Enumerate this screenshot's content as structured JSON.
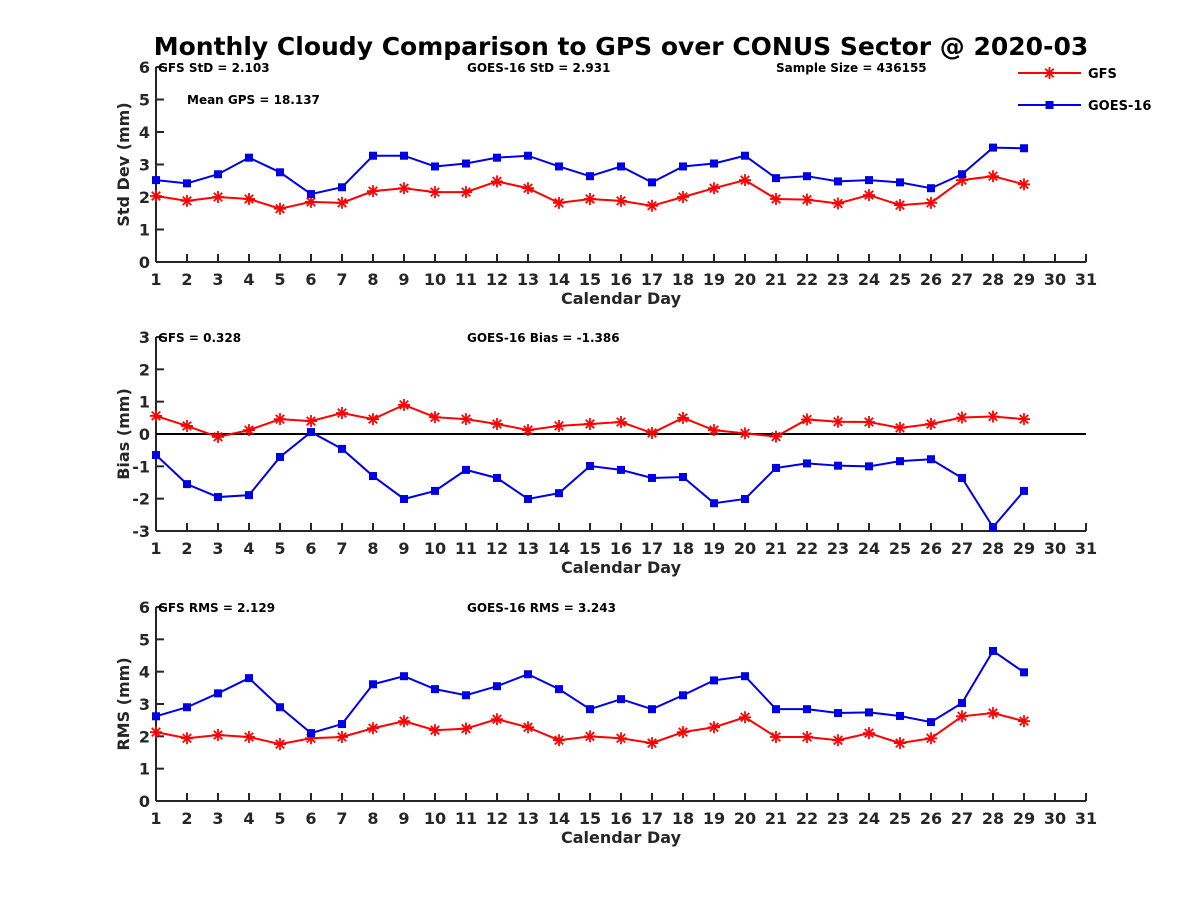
{
  "chart_data": {
    "title": "Monthly Cloudy Comparison to GPS over CONUS Sector @ 2020-03",
    "legend": {
      "placement": "top-right",
      "entries": [
        {
          "name": "GFS",
          "color": "#ff0000",
          "marker": "asterisk"
        },
        {
          "name": "GOES-16",
          "color": "#0000e6",
          "marker": "square"
        }
      ]
    },
    "panels": [
      {
        "type": "line",
        "name": "stddev",
        "xlabel": "Calendar Day",
        "ylabel": "Std Dev (mm)",
        "xlim": [
          1,
          31
        ],
        "ylim": [
          0,
          6
        ],
        "xticks": [
          1,
          2,
          3,
          4,
          5,
          6,
          7,
          8,
          9,
          10,
          11,
          12,
          13,
          14,
          15,
          16,
          17,
          18,
          19,
          20,
          21,
          22,
          23,
          24,
          25,
          26,
          27,
          28,
          29,
          30,
          31
        ],
        "yticks": [
          0,
          1,
          2,
          3,
          4,
          5,
          6
        ],
        "zero_line": false,
        "annotations": [
          {
            "text": "GFS StD = 2.103",
            "anchor": "left"
          },
          {
            "text": "GOES-16 StD = 2.931",
            "anchor": "center"
          },
          {
            "text": "Sample Size = 436155",
            "anchor": "right"
          },
          {
            "text": "Mean GPS = 18.137",
            "anchor": "left-second-row"
          }
        ],
        "x": [
          1,
          2,
          3,
          4,
          5,
          6,
          7,
          8,
          9,
          10,
          11,
          12,
          13,
          14,
          15,
          16,
          17,
          18,
          19,
          20,
          21,
          22,
          23,
          24,
          25,
          26,
          27,
          28,
          29
        ],
        "series": [
          {
            "name": "GFS",
            "values": [
              2.03,
              1.88,
              2.0,
              1.94,
              1.64,
              1.85,
              1.82,
              2.18,
              2.27,
              2.15,
              2.15,
              2.48,
              2.27,
              1.82,
              1.94,
              1.88,
              1.73,
              2.0,
              2.27,
              2.52,
              1.94,
              1.92,
              1.8,
              2.06,
              1.75,
              1.82,
              2.52,
              2.64,
              2.39
            ]
          },
          {
            "name": "GOES-16",
            "values": [
              2.52,
              2.42,
              2.7,
              3.21,
              2.76,
              2.09,
              2.3,
              3.27,
              3.27,
              2.94,
              3.03,
              3.21,
              3.27,
              2.94,
              2.64,
              2.94,
              2.45,
              2.94,
              3.03,
              3.27,
              2.58,
              2.64,
              2.48,
              2.52,
              2.45,
              2.27,
              2.7,
              3.52,
              3.5
            ]
          }
        ]
      },
      {
        "type": "line",
        "name": "bias",
        "xlabel": "Calendar Day",
        "ylabel": "Bias (mm)",
        "xlim": [
          1,
          31
        ],
        "ylim": [
          -3,
          3
        ],
        "xticks": [
          1,
          2,
          3,
          4,
          5,
          6,
          7,
          8,
          9,
          10,
          11,
          12,
          13,
          14,
          15,
          16,
          17,
          18,
          19,
          20,
          21,
          22,
          23,
          24,
          25,
          26,
          27,
          28,
          29,
          30,
          31
        ],
        "yticks": [
          -3,
          -2,
          -1,
          0,
          1,
          2,
          3
        ],
        "zero_line": true,
        "annotations": [
          {
            "text": "GFS = 0.328",
            "anchor": "left"
          },
          {
            "text": "GOES-16 Bias = -1.386",
            "anchor": "center"
          }
        ],
        "x": [
          1,
          2,
          3,
          4,
          5,
          6,
          7,
          8,
          9,
          10,
          11,
          12,
          13,
          14,
          15,
          16,
          17,
          18,
          19,
          20,
          21,
          22,
          23,
          24,
          25,
          26,
          27,
          28,
          29
        ],
        "series": [
          {
            "name": "GFS",
            "values": [
              0.56,
              0.25,
              -0.09,
              0.12,
              0.46,
              0.4,
              0.65,
              0.46,
              0.9,
              0.52,
              0.46,
              0.31,
              0.12,
              0.25,
              0.31,
              0.37,
              0.03,
              0.5,
              0.12,
              0.02,
              -0.08,
              0.45,
              0.38,
              0.37,
              0.19,
              0.31,
              0.51,
              0.54,
              0.46
            ]
          },
          {
            "name": "GOES-16",
            "values": [
              -0.65,
              -1.55,
              -1.95,
              -1.89,
              -0.71,
              0.06,
              -0.46,
              -1.3,
              -2.01,
              -1.76,
              -1.11,
              -1.36,
              -2.01,
              -1.83,
              -0.99,
              -1.11,
              -1.36,
              -1.33,
              -2.14,
              -2.01,
              -1.05,
              -0.91,
              -0.98,
              -1.0,
              -0.84,
              -0.78,
              -1.36,
              -2.88,
              -1.76
            ]
          }
        ]
      },
      {
        "type": "line",
        "name": "rms",
        "xlabel": "Calendar Day",
        "ylabel": "RMS (mm)",
        "xlim": [
          1,
          31
        ],
        "ylim": [
          0,
          6
        ],
        "xticks": [
          1,
          2,
          3,
          4,
          5,
          6,
          7,
          8,
          9,
          10,
          11,
          12,
          13,
          14,
          15,
          16,
          17,
          18,
          19,
          20,
          21,
          22,
          23,
          24,
          25,
          26,
          27,
          28,
          29,
          30,
          31
        ],
        "yticks": [
          0,
          1,
          2,
          3,
          4,
          5,
          6
        ],
        "zero_line": false,
        "annotations": [
          {
            "text": "GFS RMS = 2.129",
            "anchor": "left"
          },
          {
            "text": "GOES-16 RMS = 3.243",
            "anchor": "center"
          }
        ],
        "x": [
          1,
          2,
          3,
          4,
          5,
          6,
          7,
          8,
          9,
          10,
          11,
          12,
          13,
          14,
          15,
          16,
          17,
          18,
          19,
          20,
          21,
          22,
          23,
          24,
          25,
          26,
          27,
          28,
          29
        ],
        "series": [
          {
            "name": "GFS",
            "values": [
              2.13,
              1.94,
              2.04,
              1.98,
              1.76,
              1.94,
              1.98,
              2.25,
              2.47,
              2.19,
              2.24,
              2.53,
              2.28,
              1.88,
              2.0,
              1.94,
              1.79,
              2.13,
              2.28,
              2.59,
              1.98,
              1.98,
              1.88,
              2.1,
              1.79,
              1.94,
              2.62,
              2.72,
              2.47
            ]
          },
          {
            "name": "GOES-16",
            "values": [
              2.62,
              2.9,
              3.33,
              3.8,
              2.9,
              2.1,
              2.38,
              3.61,
              3.86,
              3.46,
              3.27,
              3.55,
              3.92,
              3.46,
              2.84,
              3.15,
              2.84,
              3.27,
              3.73,
              3.86,
              2.84,
              2.84,
              2.72,
              2.74,
              2.63,
              2.44,
              3.03,
              4.64,
              3.98
            ]
          }
        ]
      }
    ]
  }
}
